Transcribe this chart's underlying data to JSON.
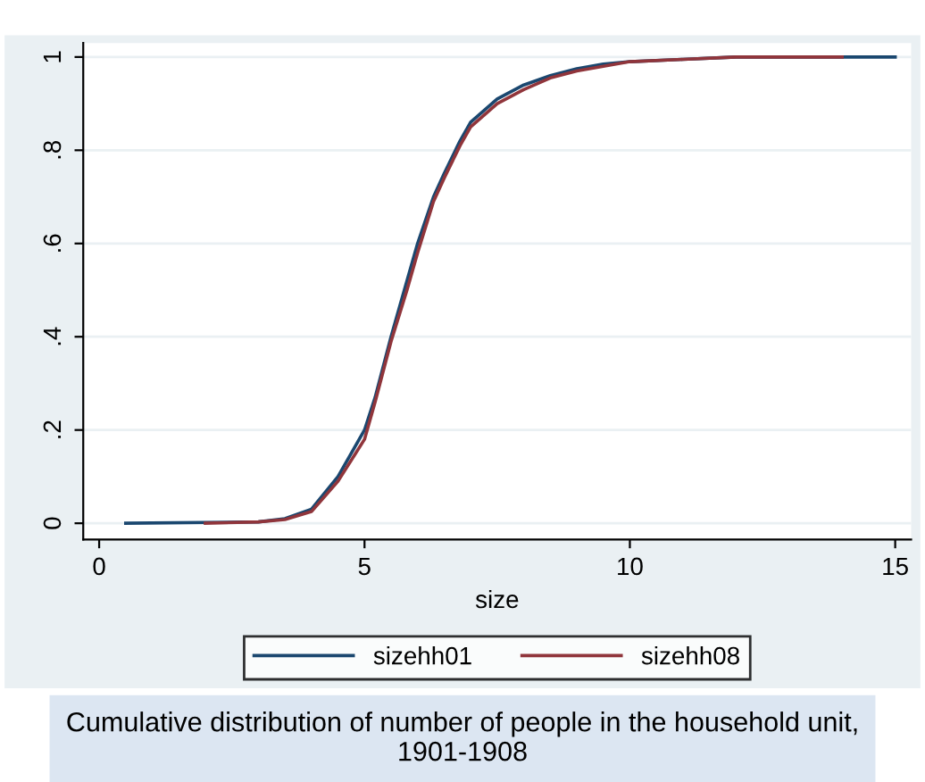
{
  "chart_data": {
    "type": "line",
    "xlabel": "size",
    "annotations": [
      "Cumulative distribution of number of people in the household unit, 1901-1908"
    ],
    "xlim": [
      -0.3,
      15.3
    ],
    "ylim": [
      -0.035,
      1.03
    ],
    "xticks": [
      0,
      5,
      10,
      15
    ],
    "yticks": [
      0,
      {
        "value": 0.2,
        "label": ".2"
      },
      {
        "value": 0.4,
        "label": ".4"
      },
      {
        "value": 0.6,
        "label": ".6"
      },
      {
        "value": 0.8,
        "label": ".8"
      },
      1
    ],
    "grid": "y",
    "legend": "bottom",
    "line_style": "solid",
    "marker": "none",
    "series": [
      {
        "name": "sizehh01",
        "color": "#1a476f",
        "x": [
          0.5,
          3.0,
          3.5,
          4.0,
          4.5,
          5.0,
          5.2,
          5.5,
          5.8,
          6.0,
          6.3,
          6.5,
          6.8,
          7.0,
          7.5,
          8.0,
          8.5,
          9.0,
          9.5,
          10.0,
          11.0,
          12.0,
          13.0,
          15.0
        ],
        "values": [
          0,
          0.003,
          0.01,
          0.03,
          0.1,
          0.2,
          0.27,
          0.4,
          0.52,
          0.6,
          0.7,
          0.75,
          0.82,
          0.86,
          0.91,
          0.94,
          0.96,
          0.975,
          0.985,
          0.99,
          0.995,
          1.0,
          1.0,
          1.0
        ]
      },
      {
        "name": "sizehh08",
        "color": "#90353b",
        "x": [
          2.0,
          3.0,
          3.5,
          4.0,
          4.5,
          5.0,
          5.2,
          5.5,
          5.8,
          6.0,
          6.3,
          6.5,
          6.8,
          7.0,
          7.5,
          8.0,
          8.5,
          9.0,
          9.5,
          10.0,
          11.0,
          12.0,
          14.0
        ],
        "values": [
          0,
          0.003,
          0.008,
          0.025,
          0.09,
          0.18,
          0.26,
          0.39,
          0.5,
          0.58,
          0.69,
          0.74,
          0.81,
          0.85,
          0.9,
          0.93,
          0.955,
          0.97,
          0.98,
          0.99,
          0.995,
          1.0,
          1.0
        ]
      }
    ]
  }
}
